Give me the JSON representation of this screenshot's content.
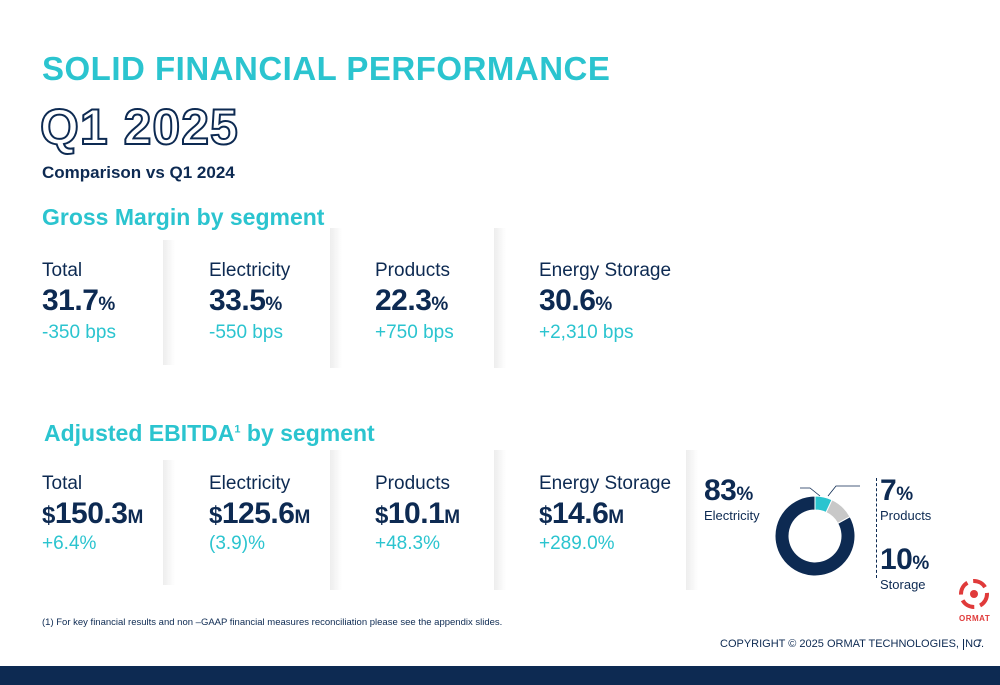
{
  "header": {
    "title": "SOLID FINANCIAL PERFORMANCE",
    "period": "Q1 2025",
    "comparison": "Comparison vs Q1 2024"
  },
  "gross_margin": {
    "title": "Gross Margin by segment",
    "segments": [
      {
        "label": "Total",
        "value": "31.7",
        "unit": "%",
        "change": "-350 bps"
      },
      {
        "label": "Electricity",
        "value": "33.5",
        "unit": "%",
        "change": "-550 bps"
      },
      {
        "label": "Products",
        "value": "22.3",
        "unit": "%",
        "change": "+750 bps"
      },
      {
        "label": "Energy Storage",
        "value": "30.6",
        "unit": "%",
        "change": "+2,310 bps"
      }
    ]
  },
  "ebitda": {
    "title": "Adjusted EBITDA",
    "title_sup": "1",
    "title_suffix": " by segment",
    "segments": [
      {
        "label": "Total",
        "currency": "$",
        "value": "150.3",
        "unit": "M",
        "change": "+6.4%"
      },
      {
        "label": "Electricity",
        "currency": "$",
        "value": "125.6",
        "unit": "M",
        "change": "(3.9)%"
      },
      {
        "label": "Products",
        "currency": "$",
        "value": "10.1",
        "unit": "M",
        "change": "+48.3%"
      },
      {
        "label": "Energy Storage",
        "currency": "$",
        "value": "14.6",
        "unit": "M",
        "change": "+289.0%"
      }
    ]
  },
  "chart_data": {
    "type": "pie",
    "categories": [
      "Electricity",
      "Products",
      "Storage"
    ],
    "values": [
      83,
      7,
      10
    ],
    "unit": "%",
    "colors": [
      "#0d2a52",
      "#2bc4cf",
      "#c8c8c8"
    ]
  },
  "footer": {
    "footnote": "(1)    For key financial results and non –GAAP financial measures reconciliation please see the appendix slides.",
    "copyright": "COPYRIGHT © 2025 ORMAT TECHNOLOGIES, INC.",
    "page": "7",
    "logo_text": "ORMAT"
  },
  "colors": {
    "accent": "#2bc4cf",
    "navy": "#0d2a52",
    "logo_red": "#e03a3a"
  }
}
